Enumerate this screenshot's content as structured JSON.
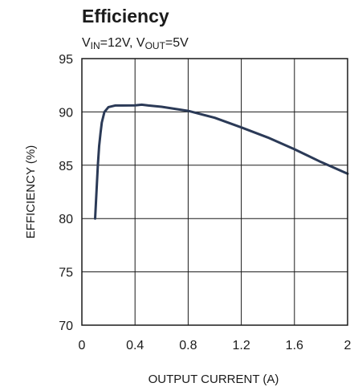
{
  "chart_data": {
    "type": "line",
    "title": "Efficiency",
    "subtitle": {
      "v_in_prefix": "V",
      "v_in_sub": "IN",
      "v_in_value": "=12V, ",
      "v_out_prefix": "V",
      "v_out_sub": "OUT",
      "v_out_value": "=5V"
    },
    "xlabel": "OUTPUT CURRENT (A)",
    "ylabel": "EFFICIENCY (%)",
    "xlim": [
      0,
      2
    ],
    "ylim": [
      70,
      95
    ],
    "x_ticks": [
      0,
      0.4,
      0.8,
      1.2,
      1.6,
      2
    ],
    "x_tick_labels": [
      "0",
      "0.4",
      "0.8",
      "1.2",
      "1.6",
      "2"
    ],
    "y_ticks": [
      95,
      90,
      85,
      80,
      75,
      70
    ],
    "y_tick_labels": [
      "95",
      "90",
      "85",
      "80",
      "75",
      "70"
    ],
    "grid": true,
    "series": [
      {
        "color": "#2b3a57",
        "x": [
          0.1,
          0.11,
          0.12,
          0.13,
          0.14,
          0.15,
          0.17,
          0.2,
          0.25,
          0.3,
          0.4,
          0.45,
          0.5,
          0.6,
          0.8,
          1.0,
          1.2,
          1.4,
          1.6,
          1.8,
          2.0
        ],
        "y": [
          80.0,
          82.5,
          85.0,
          86.8,
          88.0,
          89.0,
          90.0,
          90.45,
          90.6,
          90.6,
          90.62,
          90.68,
          90.6,
          90.48,
          90.1,
          89.45,
          88.55,
          87.6,
          86.5,
          85.3,
          84.2
        ]
      }
    ]
  }
}
